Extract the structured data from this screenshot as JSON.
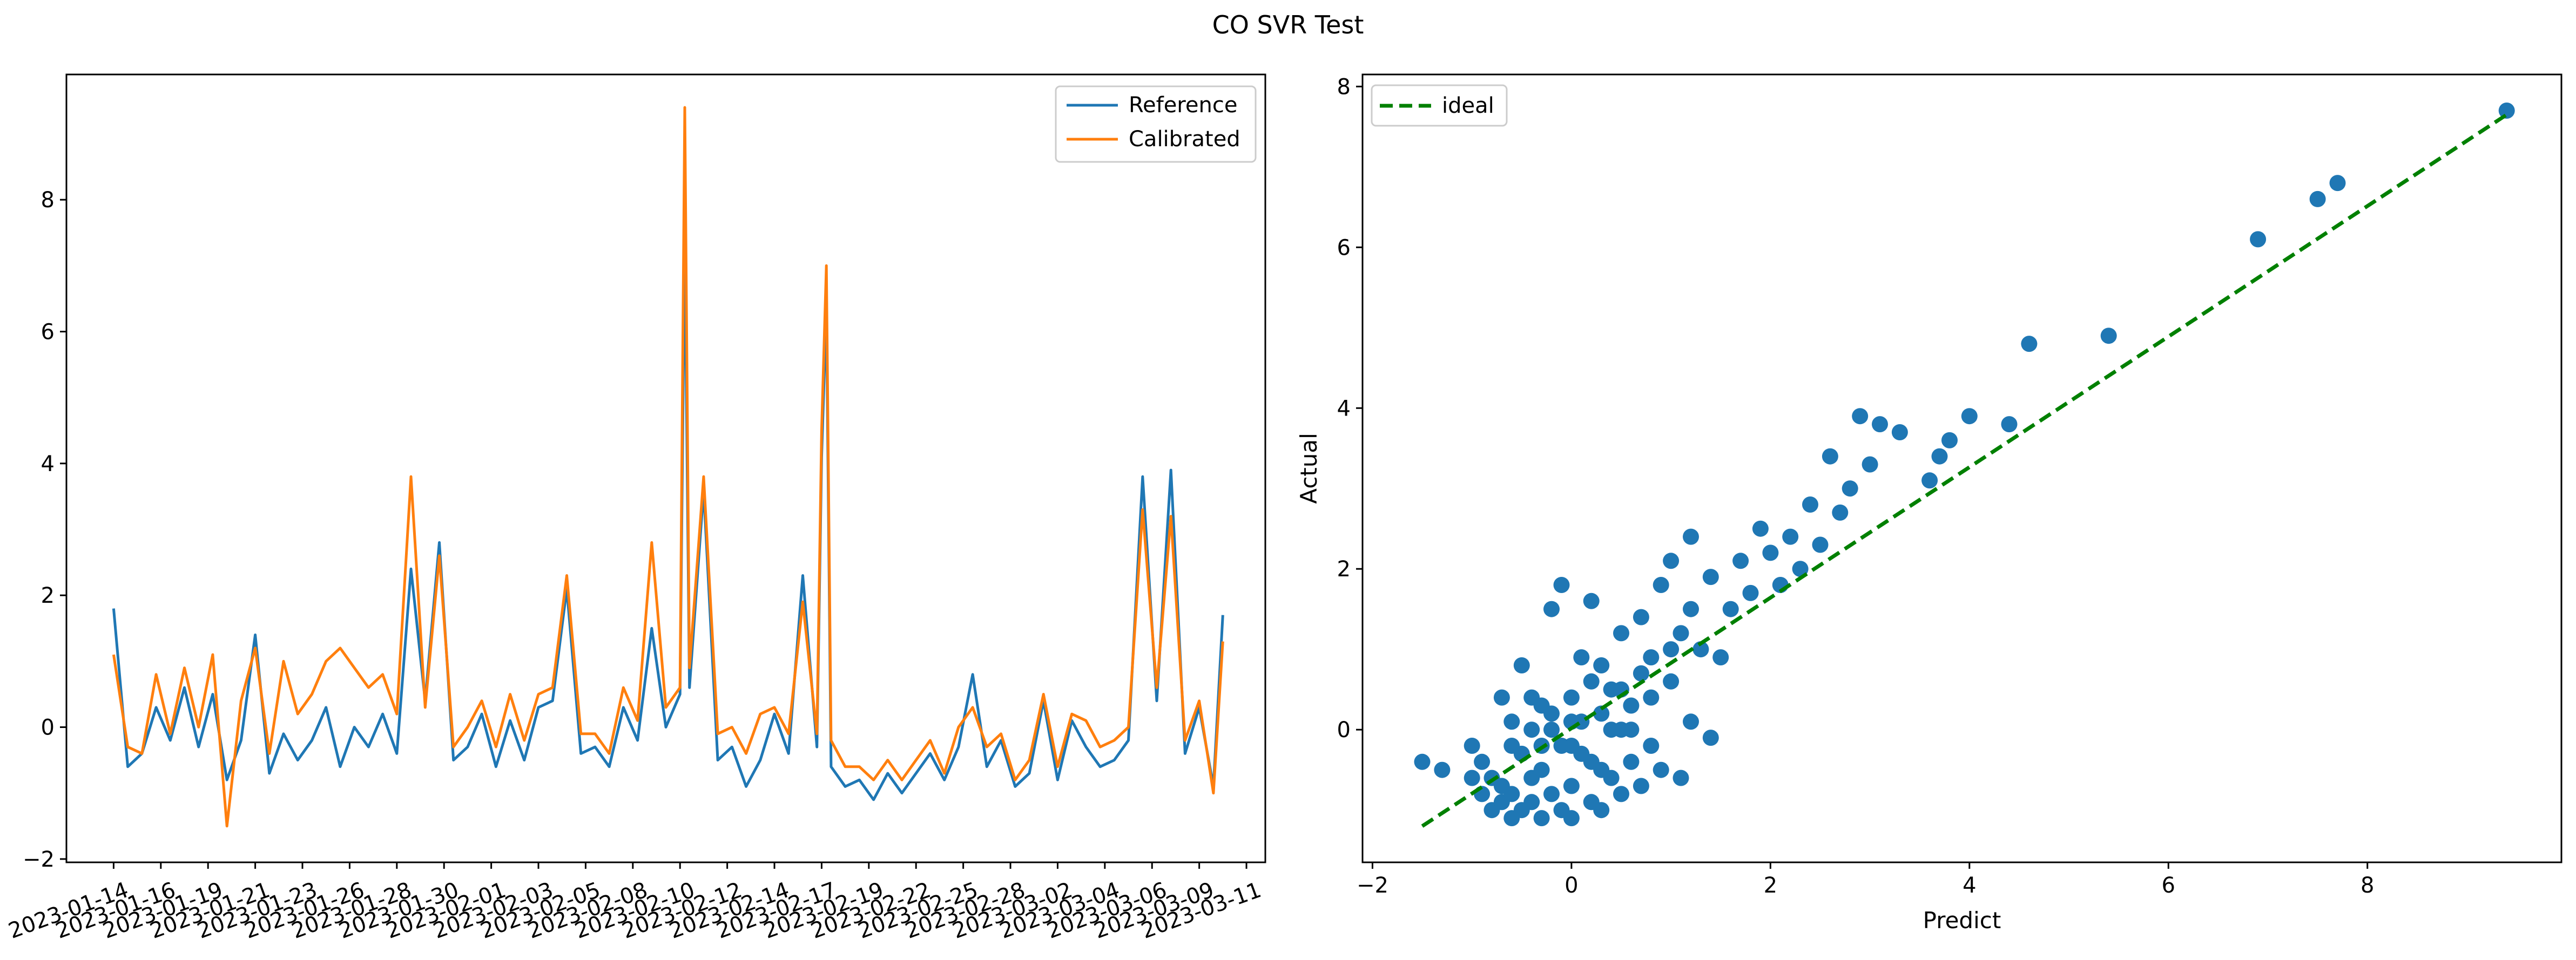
{
  "figure": {
    "suptitle": "CO SVR Test"
  },
  "colors": {
    "reference": "#1f77b4",
    "calibrated": "#ff7f0e",
    "scatter": "#1f77b4",
    "ideal": "#008000"
  },
  "chart_data": [
    {
      "type": "line",
      "title": "",
      "xlabel": "",
      "ylabel": "",
      "ylim": [
        -2.05,
        9.9
      ],
      "yticks": [
        -2,
        0,
        2,
        4,
        6,
        8
      ],
      "x_tick_labels": [
        "2023-01-14",
        "2023-01-16",
        "2023-01-19",
        "2023-01-21",
        "2023-01-23",
        "2023-01-26",
        "2023-01-28",
        "2023-01-30",
        "2023-02-01",
        "2023-02-03",
        "2023-02-05",
        "2023-02-08",
        "2023-02-10",
        "2023-02-12",
        "2023-02-14",
        "2023-02-17",
        "2023-02-19",
        "2023-02-22",
        "2023-02-25",
        "2023-02-28",
        "2023-03-02",
        "2023-03-04",
        "2023-03-06",
        "2023-03-09",
        "2023-03-11"
      ],
      "x_tick_positions": [
        0,
        10,
        20,
        30,
        40,
        50,
        60,
        70,
        80,
        90,
        100,
        110,
        120,
        130,
        140,
        150,
        160,
        170,
        180,
        190,
        200,
        210,
        220,
        230,
        240
      ],
      "legend": {
        "position": "upper right"
      },
      "series": [
        {
          "name": "Reference",
          "color": "#1f77b4",
          "x": [
            0,
            3,
            6,
            9,
            12,
            15,
            18,
            21,
            24,
            27,
            30,
            33,
            36,
            39,
            42,
            45,
            48,
            51,
            54,
            57,
            60,
            63,
            66,
            69,
            72,
            75,
            78,
            81,
            84,
            87,
            90,
            93,
            96,
            99,
            102,
            105,
            108,
            111,
            114,
            117,
            120,
            121,
            122,
            125,
            128,
            131,
            134,
            137,
            140,
            143,
            146,
            149,
            150,
            151,
            152,
            155,
            158,
            161,
            164,
            167,
            170,
            173,
            176,
            179,
            182,
            185,
            188,
            191,
            194,
            197,
            200,
            203,
            206,
            209,
            212,
            215,
            218,
            221,
            224,
            227,
            230,
            233,
            235
          ],
          "values": [
            1.8,
            -0.6,
            -0.4,
            0.3,
            -0.2,
            0.6,
            -0.3,
            0.5,
            -0.8,
            -0.2,
            1.4,
            -0.7,
            -0.1,
            -0.5,
            -0.2,
            0.3,
            -0.6,
            0.0,
            -0.3,
            0.2,
            -0.4,
            2.4,
            0.4,
            2.8,
            -0.5,
            -0.3,
            0.2,
            -0.6,
            0.1,
            -0.5,
            0.3,
            0.4,
            2.1,
            -0.4,
            -0.3,
            -0.6,
            0.3,
            -0.2,
            1.5,
            0.0,
            0.5,
            7.5,
            0.6,
            3.6,
            -0.5,
            -0.3,
            -0.9,
            -0.5,
            0.2,
            -0.4,
            2.3,
            -0.3,
            4.1,
            6.4,
            -0.6,
            -0.9,
            -0.8,
            -1.1,
            -0.7,
            -1.0,
            -0.7,
            -0.4,
            -0.8,
            -0.3,
            0.8,
            -0.6,
            -0.2,
            -0.9,
            -0.7,
            0.4,
            -0.8,
            0.1,
            -0.3,
            -0.6,
            -0.5,
            -0.2,
            3.8,
            0.4,
            3.9,
            -0.4,
            0.3,
            -0.9,
            1.7
          ]
        },
        {
          "name": "Calibrated",
          "color": "#ff7f0e",
          "x": [
            0,
            3,
            6,
            9,
            12,
            15,
            18,
            21,
            24,
            27,
            30,
            33,
            36,
            39,
            42,
            45,
            48,
            51,
            54,
            57,
            60,
            63,
            66,
            69,
            72,
            75,
            78,
            81,
            84,
            87,
            90,
            93,
            96,
            99,
            102,
            105,
            108,
            111,
            114,
            117,
            120,
            121,
            122,
            125,
            128,
            131,
            134,
            137,
            140,
            143,
            146,
            149,
            150,
            151,
            152,
            155,
            158,
            161,
            164,
            167,
            170,
            173,
            176,
            179,
            182,
            185,
            188,
            191,
            194,
            197,
            200,
            203,
            206,
            209,
            212,
            215,
            218,
            221,
            224,
            227,
            230,
            233,
            235
          ],
          "values": [
            1.1,
            -0.3,
            -0.4,
            0.8,
            -0.1,
            0.9,
            0.0,
            1.1,
            -1.5,
            0.4,
            1.2,
            -0.4,
            1.0,
            0.2,
            0.5,
            1.0,
            1.2,
            0.9,
            0.6,
            0.8,
            0.2,
            3.8,
            0.3,
            2.6,
            -0.3,
            0.0,
            0.4,
            -0.3,
            0.5,
            -0.2,
            0.5,
            0.6,
            2.3,
            -0.1,
            -0.1,
            -0.4,
            0.6,
            0.1,
            2.8,
            0.3,
            0.6,
            9.4,
            0.9,
            3.8,
            -0.1,
            0.0,
            -0.4,
            0.2,
            0.3,
            -0.1,
            1.9,
            -0.1,
            4.5,
            7.0,
            -0.2,
            -0.6,
            -0.6,
            -0.8,
            -0.5,
            -0.8,
            -0.5,
            -0.2,
            -0.7,
            0.0,
            0.3,
            -0.3,
            -0.1,
            -0.8,
            -0.5,
            0.5,
            -0.6,
            0.2,
            0.1,
            -0.3,
            -0.2,
            0.0,
            3.3,
            0.6,
            3.2,
            -0.2,
            0.4,
            -1.0,
            1.3
          ]
        }
      ]
    },
    {
      "type": "scatter",
      "title": "",
      "xlabel": "Predict",
      "ylabel": "Actual",
      "xlim": [
        -2.1,
        9.95
      ],
      "ylim": [
        -1.65,
        8.15
      ],
      "xticks": [
        -2,
        0,
        2,
        4,
        6,
        8
      ],
      "yticks": [
        0,
        2,
        4,
        6,
        8
      ],
      "legend": {
        "position": "upper left"
      },
      "ideal_line": {
        "name": "ideal",
        "x": [
          -1.5,
          9.4
        ],
        "y": [
          -1.2,
          7.65
        ]
      },
      "points": [
        [
          -1.5,
          -0.4
        ],
        [
          -1.3,
          -0.5
        ],
        [
          -1.0,
          -0.2
        ],
        [
          -1.0,
          -0.6
        ],
        [
          -0.9,
          -0.8
        ],
        [
          -0.9,
          -0.4
        ],
        [
          -0.8,
          -1.0
        ],
        [
          -0.8,
          -0.6
        ],
        [
          -0.7,
          0.4
        ],
        [
          -0.7,
          -0.9
        ],
        [
          -0.7,
          -0.7
        ],
        [
          -0.6,
          0.1
        ],
        [
          -0.6,
          -1.1
        ],
        [
          -0.6,
          -0.8
        ],
        [
          -0.5,
          -0.3
        ],
        [
          -0.5,
          0.8
        ],
        [
          -0.5,
          -1.0
        ],
        [
          -0.4,
          -0.6
        ],
        [
          -0.4,
          0.0
        ],
        [
          -0.4,
          -0.9
        ],
        [
          -0.3,
          -1.1
        ],
        [
          -0.3,
          0.3
        ],
        [
          -0.3,
          -0.5
        ],
        [
          -0.2,
          1.5
        ],
        [
          -0.2,
          -0.8
        ],
        [
          -0.2,
          0.2
        ],
        [
          -0.1,
          1.8
        ],
        [
          -0.1,
          -1.0
        ],
        [
          -0.1,
          -0.2
        ],
        [
          0.0,
          0.4
        ],
        [
          0.0,
          -0.7
        ],
        [
          0.0,
          -1.1
        ],
        [
          0.1,
          0.9
        ],
        [
          0.1,
          -0.3
        ],
        [
          0.1,
          0.1
        ],
        [
          0.2,
          -0.9
        ],
        [
          0.2,
          1.6
        ],
        [
          0.2,
          0.6
        ],
        [
          0.3,
          -0.5
        ],
        [
          0.3,
          0.2
        ],
        [
          0.3,
          -1.0
        ],
        [
          0.4,
          0.5
        ],
        [
          0.4,
          -0.6
        ],
        [
          0.5,
          1.2
        ],
        [
          0.5,
          0.0
        ],
        [
          0.5,
          -0.8
        ],
        [
          0.6,
          0.3
        ],
        [
          0.6,
          -0.4
        ],
        [
          0.7,
          1.4
        ],
        [
          0.7,
          0.7
        ],
        [
          0.8,
          -0.2
        ],
        [
          0.8,
          0.9
        ],
        [
          0.9,
          1.8
        ],
        [
          0.9,
          -0.5
        ],
        [
          1.0,
          0.6
        ],
        [
          1.0,
          2.1
        ],
        [
          1.1,
          1.2
        ],
        [
          1.1,
          -0.6
        ],
        [
          1.2,
          2.4
        ],
        [
          1.2,
          0.1
        ],
        [
          1.3,
          1.0
        ],
        [
          1.4,
          1.9
        ],
        [
          1.4,
          -0.1
        ],
        [
          1.5,
          0.9
        ],
        [
          1.6,
          1.5
        ],
        [
          1.7,
          2.1
        ],
        [
          1.8,
          1.7
        ],
        [
          1.9,
          2.5
        ],
        [
          2.0,
          2.2
        ],
        [
          2.1,
          1.8
        ],
        [
          2.2,
          2.4
        ],
        [
          2.3,
          2.0
        ],
        [
          2.4,
          2.8
        ],
        [
          2.5,
          2.3
        ],
        [
          2.6,
          3.4
        ],
        [
          2.7,
          2.7
        ],
        [
          2.8,
          3.0
        ],
        [
          2.9,
          3.9
        ],
        [
          3.0,
          3.3
        ],
        [
          3.1,
          3.8
        ],
        [
          3.3,
          3.7
        ],
        [
          3.6,
          3.1
        ],
        [
          3.7,
          3.4
        ],
        [
          3.8,
          3.6
        ],
        [
          4.0,
          3.9
        ],
        [
          4.4,
          3.8
        ],
        [
          4.6,
          4.8
        ],
        [
          5.4,
          4.9
        ],
        [
          6.9,
          6.1
        ],
        [
          7.5,
          6.6
        ],
        [
          7.7,
          6.8
        ],
        [
          9.4,
          7.7
        ],
        [
          -0.6,
          -0.2
        ],
        [
          -0.4,
          0.4
        ],
        [
          -0.2,
          0.0
        ],
        [
          0.0,
          -0.2
        ],
        [
          0.2,
          -0.4
        ],
        [
          0.4,
          0.0
        ],
        [
          0.6,
          0.0
        ],
        [
          0.8,
          0.4
        ],
        [
          1.0,
          1.0
        ],
        [
          1.2,
          1.5
        ],
        [
          0.3,
          0.8
        ],
        [
          0.7,
          -0.7
        ],
        [
          -0.3,
          -0.2
        ],
        [
          0.0,
          0.1
        ],
        [
          0.5,
          0.5
        ]
      ]
    }
  ]
}
